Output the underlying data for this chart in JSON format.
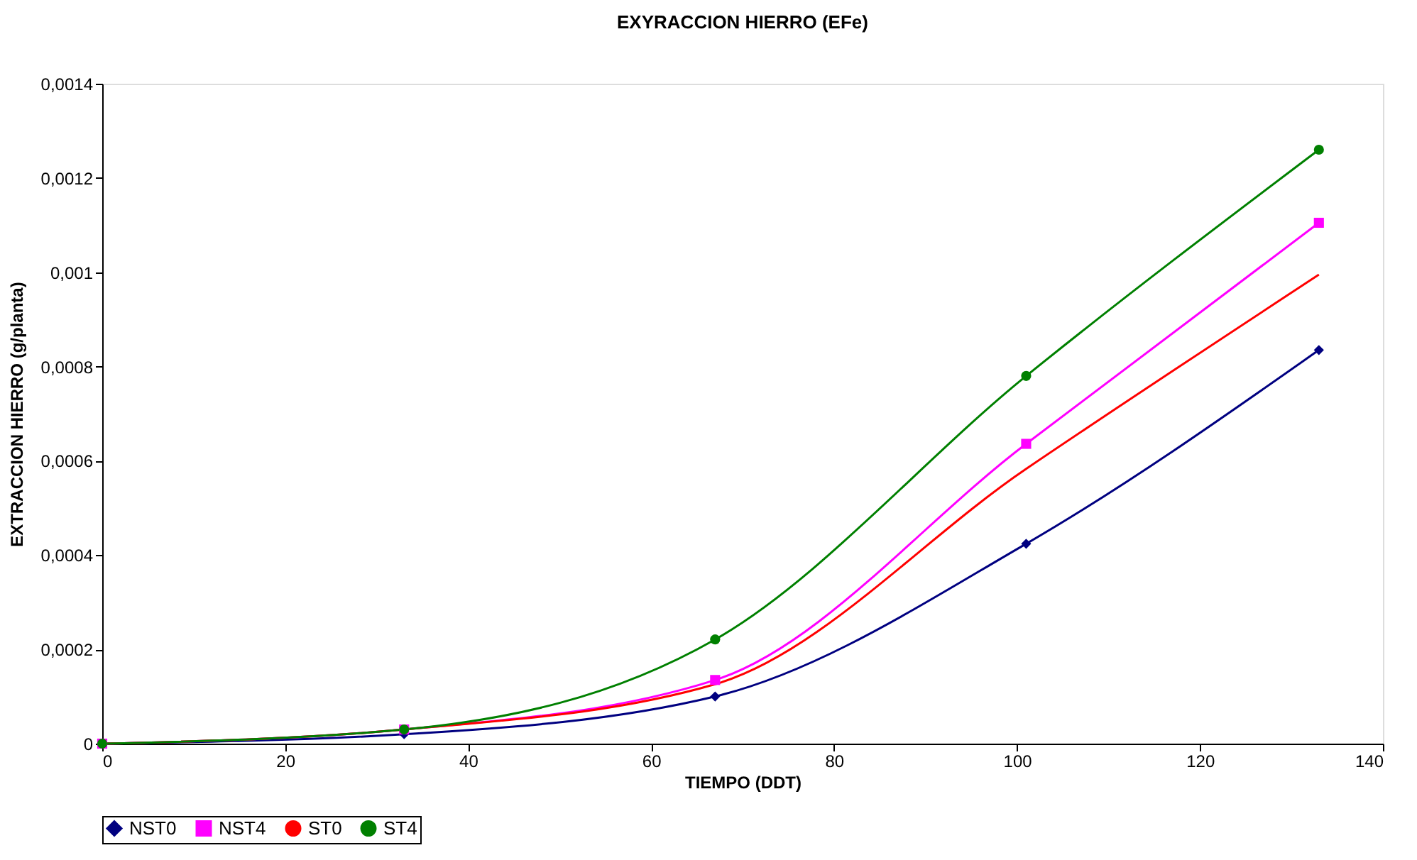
{
  "chart_data": {
    "type": "line",
    "title": "EXYRACCION HIERRO (EFe)",
    "xlabel": "TIEMPO (DDT)",
    "ylabel": "EXTRACCION HIERRO (g/planta)",
    "x": [
      0,
      33,
      67,
      101,
      133
    ],
    "series": [
      {
        "name": "NST0",
        "color": "#000080",
        "marker": "diamond",
        "values": [
          0,
          2e-05,
          0.0001,
          0.000424,
          0.000835
        ]
      },
      {
        "name": "NST4",
        "color": "#ff00ff",
        "marker": "square",
        "values": [
          0,
          3e-05,
          0.000135,
          0.000636,
          0.001105
        ]
      },
      {
        "name": "ST0",
        "color": "#ff0000",
        "marker": "none",
        "values": [
          0,
          3e-05,
          0.000126,
          0.000583,
          0.000995
        ]
      },
      {
        "name": "ST4",
        "color": "#008000",
        "marker": "circle",
        "values": [
          0,
          3e-05,
          0.000221,
          0.00078,
          0.00126
        ]
      }
    ],
    "xlim": [
      0,
      140
    ],
    "xticks": [
      0,
      20,
      40,
      60,
      80,
      100,
      120,
      140
    ],
    "ylim": [
      0,
      0.0014
    ],
    "yticks": [
      0,
      {
        "value": 0.0002,
        "label": "0,0002"
      },
      {
        "value": 0.0004,
        "label": "0,0004"
      },
      {
        "value": 0.0006,
        "label": "0,0006"
      },
      {
        "value": 0.0008,
        "label": "0,0008"
      },
      {
        "value": 0.001,
        "label": "0,001"
      },
      {
        "value": 0.0012,
        "label": "0,0012"
      },
      {
        "value": 0.0014,
        "label": "0,0014"
      }
    ],
    "grid": false,
    "legend": "bottom",
    "line_style": "solid"
  }
}
